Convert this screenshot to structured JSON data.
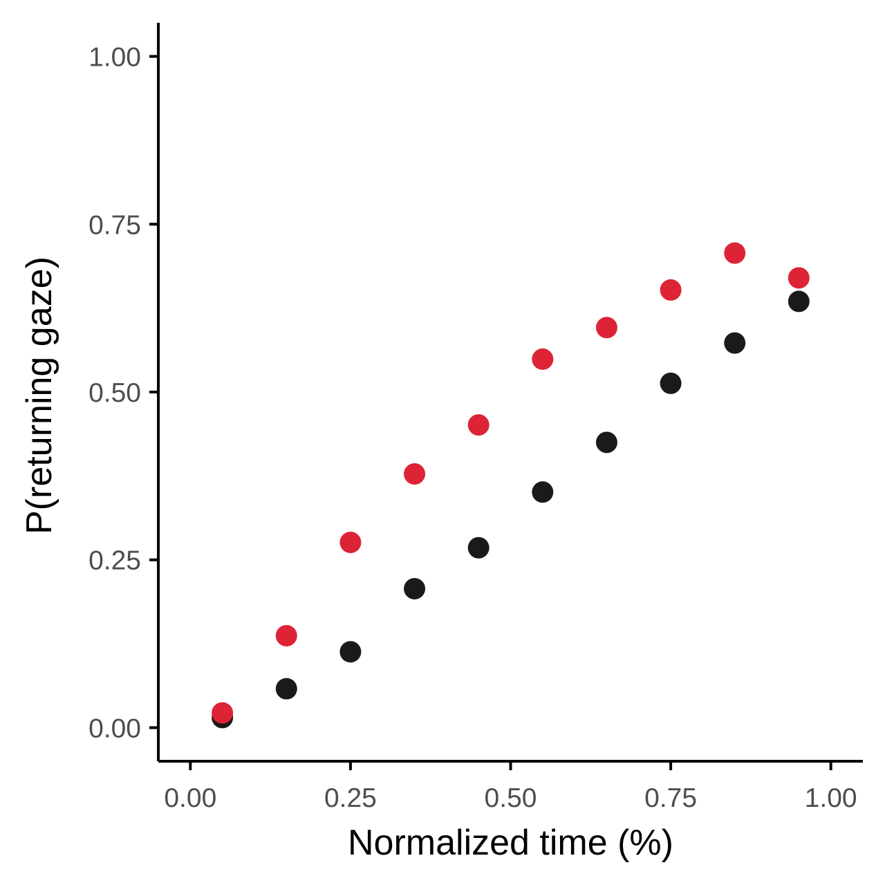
{
  "chart_data": {
    "type": "scatter",
    "title": "",
    "xlabel": "Normalized time (%)",
    "ylabel": "P(returning gaze)",
    "xlim": [
      -0.05,
      1.05
    ],
    "ylim": [
      -0.05,
      1.05
    ],
    "xticks": [
      0.0,
      0.25,
      0.5,
      0.75,
      1.0
    ],
    "xtick_labels": [
      "0.00",
      "0.25",
      "0.50",
      "0.75",
      "1.00"
    ],
    "yticks": [
      0.0,
      0.25,
      0.5,
      0.75,
      1.0
    ],
    "ytick_labels": [
      "0.00",
      "0.25",
      "0.50",
      "0.75",
      "1.00"
    ],
    "grid": false,
    "legend": "none",
    "series": [
      {
        "color": "#1a1a1a",
        "x": [
          0.05,
          0.15,
          0.25,
          0.35,
          0.45,
          0.55,
          0.65,
          0.75,
          0.85,
          0.95
        ],
        "y": [
          0.015,
          0.058,
          0.113,
          0.207,
          0.268,
          0.351,
          0.425,
          0.513,
          0.573,
          0.635
        ]
      },
      {
        "color": "#dc2436",
        "x": [
          0.05,
          0.15,
          0.25,
          0.35,
          0.45,
          0.55,
          0.65,
          0.75,
          0.85,
          0.95
        ],
        "y": [
          0.022,
          0.137,
          0.276,
          0.378,
          0.451,
          0.549,
          0.596,
          0.652,
          0.707,
          0.67
        ]
      }
    ]
  }
}
